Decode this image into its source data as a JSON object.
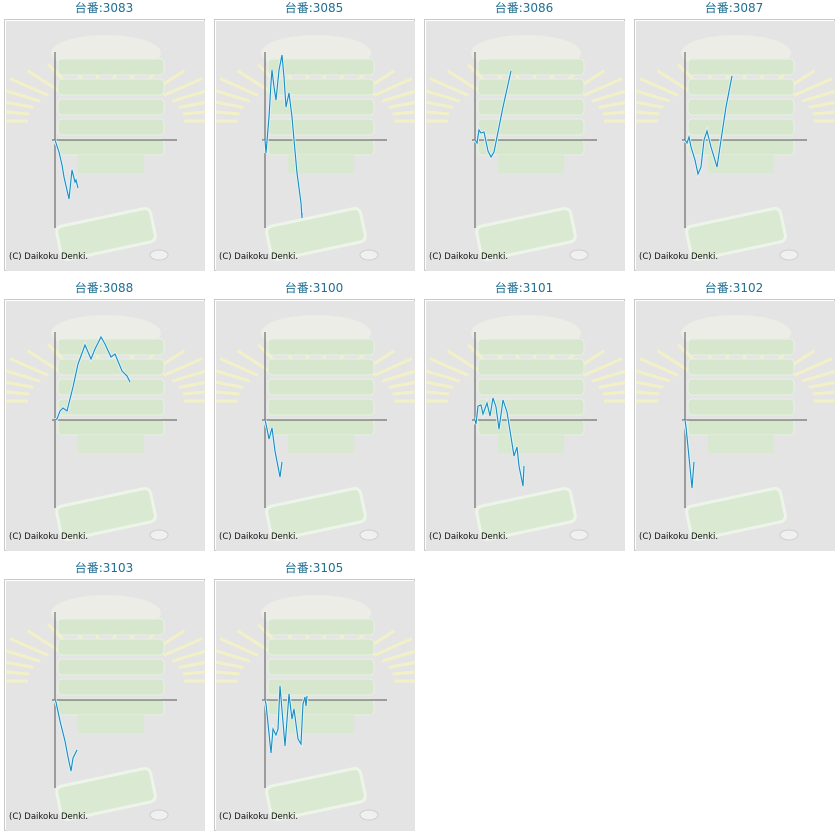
{
  "copyright": "(C) Daikoku Denki.",
  "colors": {
    "line": "#1a8cbf",
    "axis": "#555555",
    "title": "#1d6f93"
  },
  "chart_data": [
    {
      "type": "line",
      "title": "台番:3083",
      "xlim": [
        0,
        122
      ],
      "ylim": [
        -88,
        88
      ],
      "x": [
        0,
        4,
        7,
        9,
        14,
        17,
        20,
        21,
        23
      ],
      "y": [
        0,
        -12,
        -25,
        -37,
        -59,
        -30,
        -42,
        -40,
        -48
      ]
    },
    {
      "type": "line",
      "title": "台番:3085",
      "xlim": [
        0,
        122
      ],
      "ylim": [
        -88,
        88
      ],
      "x": [
        0,
        1,
        4,
        6,
        7,
        9,
        11,
        14,
        17,
        19,
        21,
        24,
        27,
        29,
        32,
        36,
        37,
        37
      ],
      "y": [
        0,
        -13,
        23,
        57,
        70,
        53,
        40,
        70,
        85,
        63,
        33,
        47,
        23,
        0,
        -33,
        -63,
        -78,
        -73
      ]
    },
    {
      "type": "line",
      "title": "台番:3086",
      "xlim": [
        0,
        122
      ],
      "ylim": [
        -88,
        88
      ],
      "x": [
        0,
        2,
        4,
        6,
        9,
        13,
        16,
        19,
        22,
        28,
        36
      ],
      "y": [
        0,
        -3,
        10,
        7,
        8,
        -11,
        -17,
        -12,
        3,
        33,
        69
      ]
    },
    {
      "type": "line",
      "title": "台番:3087",
      "xlim": [
        0,
        122
      ],
      "ylim": [
        -88,
        88
      ],
      "x": [
        0,
        2,
        4,
        6,
        10,
        13,
        16,
        19,
        22,
        26,
        32,
        36,
        41,
        47
      ],
      "y": [
        0,
        -3,
        3,
        -7,
        -20,
        -34,
        -27,
        0,
        9,
        -7,
        -27,
        0,
        33,
        64
      ]
    },
    {
      "type": "line",
      "title": "台番:3088",
      "xlim": [
        0,
        122
      ],
      "ylim": [
        -88,
        88
      ],
      "x": [
        0,
        2,
        5,
        8,
        12,
        18,
        23,
        30,
        36,
        40,
        46,
        50,
        56,
        60,
        67,
        72,
        75
      ],
      "y": [
        0,
        1,
        9,
        12,
        9,
        33,
        56,
        75,
        61,
        71,
        83,
        76,
        63,
        66,
        49,
        44,
        38
      ]
    },
    {
      "type": "line",
      "title": "台番:3100",
      "xlim": [
        0,
        122
      ],
      "ylim": [
        -88,
        88
      ],
      "x": [
        0,
        1,
        4,
        7,
        10,
        15,
        17
      ],
      "y": [
        0,
        -4,
        -19,
        -8,
        -31,
        -57,
        -42
      ]
    },
    {
      "type": "line",
      "title": "台番:3101",
      "xlim": [
        0,
        122
      ],
      "ylim": [
        -88,
        88
      ],
      "x": [
        0,
        1,
        3,
        6,
        8,
        12,
        15,
        18,
        21,
        24,
        28,
        32,
        36,
        39,
        42,
        44,
        48,
        49
      ],
      "y": [
        0,
        -4,
        14,
        15,
        6,
        17,
        4,
        22,
        13,
        -9,
        20,
        8,
        -17,
        -36,
        -27,
        -46,
        -66,
        -46
      ]
    },
    {
      "type": "line",
      "title": "台番:3102",
      "xlim": [
        0,
        122
      ],
      "ylim": [
        -88,
        88
      ],
      "x": [
        0,
        1,
        3,
        7,
        9
      ],
      "y": [
        0,
        -7,
        -27,
        -68,
        -42
      ]
    },
    {
      "type": "line",
      "title": "台番:3103",
      "xlim": [
        0,
        122
      ],
      "ylim": [
        -88,
        88
      ],
      "x": [
        0,
        1,
        5,
        10,
        13,
        16,
        18,
        22
      ],
      "y": [
        0,
        -2,
        -21,
        -41,
        -57,
        -71,
        -58,
        -50
      ]
    },
    {
      "type": "line",
      "title": "台番:3105",
      "xlim": [
        0,
        122
      ],
      "ylim": [
        -88,
        88
      ],
      "x": [
        0,
        1,
        6,
        8,
        11,
        13,
        15,
        20,
        24,
        27,
        29,
        33,
        36,
        38,
        40,
        41,
        42
      ],
      "y": [
        0,
        -4,
        -53,
        -29,
        -35,
        -29,
        14,
        -46,
        6,
        -19,
        -9,
        -39,
        -44,
        -4,
        3,
        -6,
        4
      ]
    }
  ]
}
